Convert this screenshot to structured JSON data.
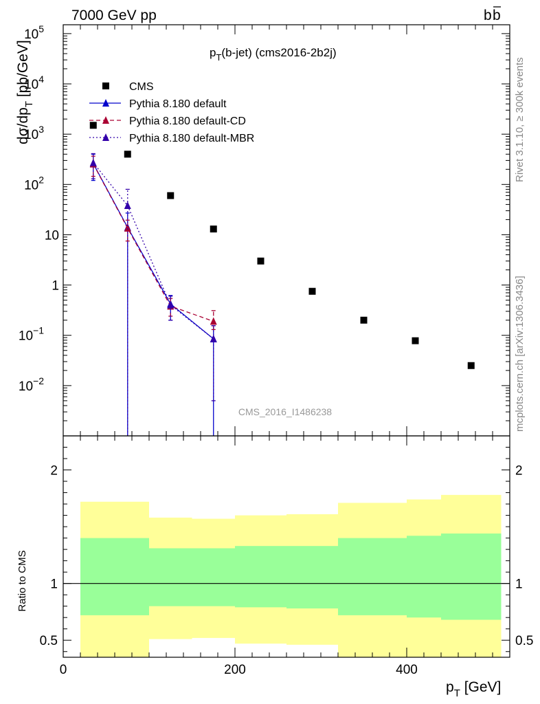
{
  "header": {
    "left": "7000 GeV pp",
    "right": "b",
    "right_bar": "b"
  },
  "main_title": {
    "base": "p",
    "sub": "T",
    "rest": "(b-jet) (cms2016-2b2j)"
  },
  "side_labels": {
    "rivet": "Rivet 3.1.10, ≥ 300k events",
    "mcplots": "mcplots.cern.ch [arXiv:1306.3436]"
  },
  "watermark": "CMS_2016_I1486238",
  "ylabel_main": {
    "part1": "dσ/dp",
    "sub": "T",
    "part2": " [pb/GeV]"
  },
  "ylabel_ratio": "Ratio to CMS",
  "xlabel": {
    "base": "p",
    "sub": "T",
    "rest": " [GeV]"
  },
  "colors": {
    "cms": "#000000",
    "default": "#0000cc",
    "cd": "#aa0033",
    "mbr": "#3300aa",
    "band_inner": "#99ff99",
    "band_outer": "#ffff99"
  },
  "chart_data": [
    {
      "type": "scatter",
      "panel": "main",
      "yscale": "log",
      "xlim": [
        0,
        520
      ],
      "ylim": [
        0.001,
        150000
      ],
      "yticks": [
        {
          "value": 100000,
          "base": "10",
          "exp": "5"
        },
        {
          "value": 10000,
          "base": "10",
          "exp": "4"
        },
        {
          "value": 1000,
          "base": "10",
          "exp": "3"
        },
        {
          "value": 100,
          "base": "10",
          "exp": "2"
        },
        {
          "value": 10,
          "base": "10",
          "exp": ""
        },
        {
          "value": 1,
          "base": "1",
          "exp": ""
        },
        {
          "value": 0.1,
          "base": "10",
          "exp": "−1"
        },
        {
          "value": 0.01,
          "base": "10",
          "exp": "−2"
        }
      ],
      "legend_position": "top-left",
      "series": [
        {
          "name": "CMS",
          "style": "square-marker",
          "x": [
            35,
            75,
            125,
            175,
            230,
            290,
            350,
            410,
            475
          ],
          "y": [
            1500,
            400,
            60,
            13,
            3,
            0.75,
            0.2,
            0.078,
            0.025
          ]
        },
        {
          "name": "Pythia 8.180 default",
          "style": "solid",
          "x": [
            35,
            75,
            125,
            175
          ],
          "y": [
            260,
            14,
            0.42,
            0.085
          ],
          "err_low": [
            140,
            13.999,
            0.22,
            0.08499
          ],
          "err_high": [
            140,
            13,
            0.2,
            0.07
          ]
        },
        {
          "name": "Pythia 8.180 default-CD",
          "style": "dashed",
          "x": [
            35,
            75,
            125,
            175
          ],
          "y": [
            255,
            13.5,
            0.38,
            0.19
          ],
          "err_low": [
            110,
            6,
            0.14,
            0.06
          ],
          "err_high": [
            110,
            6,
            0.16,
            0.12
          ]
        },
        {
          "name": "Pythia 8.180 default-MBR",
          "style": "dotted",
          "x": [
            35,
            75,
            125,
            175
          ],
          "y": [
            270,
            38,
            0.4,
            0.085
          ],
          "err_low": [
            140,
            37.999,
            0.2,
            0.08
          ],
          "err_high": [
            140,
            42,
            0.2,
            0.07
          ]
        }
      ]
    },
    {
      "type": "area",
      "panel": "ratio",
      "xlim": [
        0,
        520
      ],
      "ylim": [
        0.35,
        2.3
      ],
      "xticks": [
        0,
        200,
        400
      ],
      "yticks": [
        0.5,
        1,
        2
      ],
      "reference_line": 1,
      "bins": [
        {
          "x0": 20,
          "x1": 100,
          "inner": [
            0.72,
            1.4
          ],
          "outer": [
            0.35,
            1.72
          ]
        },
        {
          "x0": 100,
          "x1": 150,
          "inner": [
            0.8,
            1.31
          ],
          "outer": [
            0.51,
            1.58
          ]
        },
        {
          "x0": 150,
          "x1": 200,
          "inner": [
            0.8,
            1.31
          ],
          "outer": [
            0.52,
            1.57
          ]
        },
        {
          "x0": 200,
          "x1": 260,
          "inner": [
            0.79,
            1.33
          ],
          "outer": [
            0.47,
            1.6
          ]
        },
        {
          "x0": 260,
          "x1": 320,
          "inner": [
            0.78,
            1.33
          ],
          "outer": [
            0.46,
            1.61
          ]
        },
        {
          "x0": 320,
          "x1": 400,
          "inner": [
            0.72,
            1.4
          ],
          "outer": [
            0.35,
            1.71
          ]
        },
        {
          "x0": 400,
          "x1": 440,
          "inner": [
            0.7,
            1.42
          ],
          "outer": [
            0.35,
            1.74
          ]
        },
        {
          "x0": 440,
          "x1": 510,
          "inner": [
            0.68,
            1.44
          ],
          "outer": [
            0.35,
            1.78
          ]
        }
      ]
    }
  ]
}
